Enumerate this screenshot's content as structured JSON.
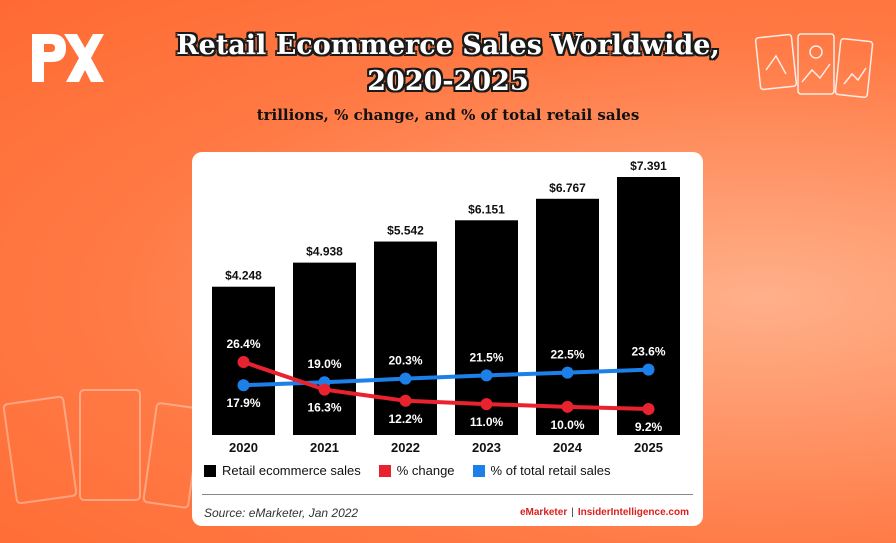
{
  "header": {
    "title_line1": "Retail Ecommerce Sales Worldwide,",
    "title_line2": "2020-2025",
    "subtitle": "trillions, % change, and % of total retail sales"
  },
  "colors": {
    "bar": "#000000",
    "change": "#e8222e",
    "share": "#1d7fe8",
    "brand_red": "#d9201f"
  },
  "chart_data": {
    "type": "bar",
    "categories": [
      "2020",
      "2021",
      "2022",
      "2023",
      "2024",
      "2025"
    ],
    "series": [
      {
        "name": "Retail ecommerce sales",
        "type": "bar",
        "values": [
          4.248,
          4.938,
          5.542,
          6.151,
          6.767,
          7.391
        ],
        "labels": [
          "$4.248",
          "$4.938",
          "$5.542",
          "$6.151",
          "$6.767",
          "$7.391"
        ]
      },
      {
        "name": "% change",
        "type": "line",
        "values": [
          26.4,
          16.3,
          12.2,
          11.0,
          10.0,
          9.2
        ],
        "labels": [
          "26.4%",
          "16.3%",
          "12.2%",
          "11.0%",
          "10.0%",
          "9.2%"
        ]
      },
      {
        "name": "% of total retail sales",
        "type": "line",
        "values": [
          17.9,
          19.0,
          20.3,
          21.5,
          22.5,
          23.6
        ],
        "labels": [
          "17.9%",
          "19.0%",
          "20.3%",
          "21.5%",
          "22.5%",
          "23.6%"
        ]
      }
    ],
    "ylim": [
      0,
      7.391
    ],
    "legend_position": "bottom"
  },
  "legend": [
    {
      "label": "Retail ecommerce sales",
      "color": "#000000"
    },
    {
      "label": "% change",
      "color": "#e8222e"
    },
    {
      "label": "% of total retail sales",
      "color": "#1d7fe8"
    }
  ],
  "footer": {
    "source": "Source: eMarketer, Jan 2022",
    "brand_left": "eMarketer",
    "brand_sep": "|",
    "brand_right": "InsiderIntelligence.com"
  }
}
